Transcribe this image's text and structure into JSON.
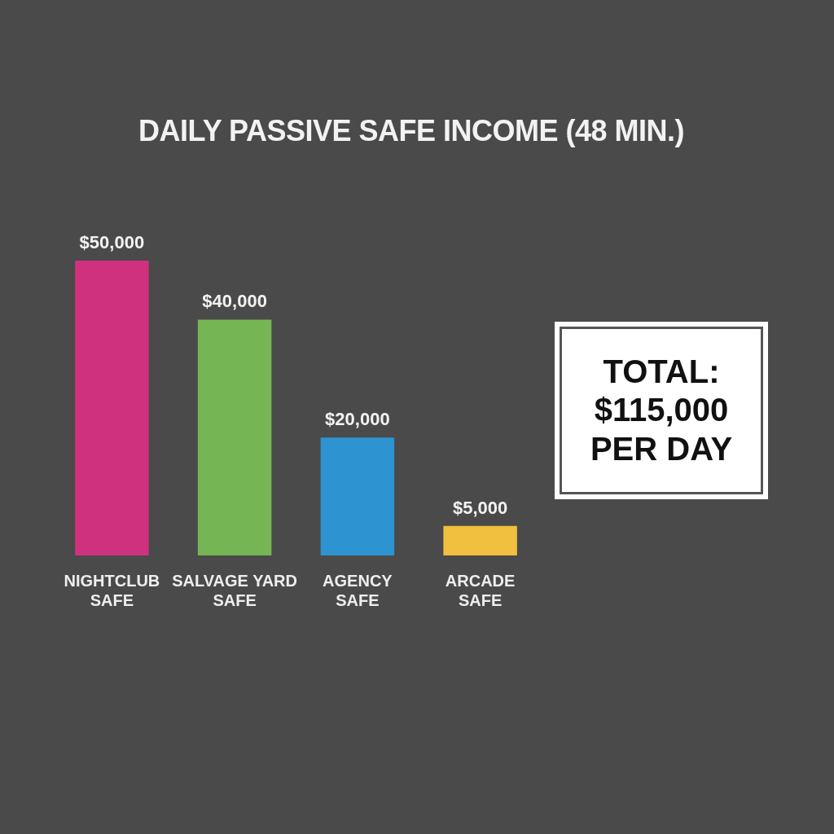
{
  "chart_data": {
    "type": "bar",
    "title": "DAILY PASSIVE SAFE INCOME (48 MIN.)",
    "categories": [
      "NIGHTCLUB SAFE",
      "SALVAGE YARD SAFE",
      "AGENCY SAFE",
      "ARCADE SAFE"
    ],
    "values": [
      50000,
      40000,
      20000,
      5000
    ],
    "colors": [
      "#d0317f",
      "#76b553",
      "#2e93d1",
      "#f0c03e"
    ],
    "value_labels": [
      "$50,000",
      "$40,000",
      "$20,000",
      "$5,000"
    ],
    "annotations": [
      "TOTAL: $115,000 PER DAY"
    ]
  }
}
